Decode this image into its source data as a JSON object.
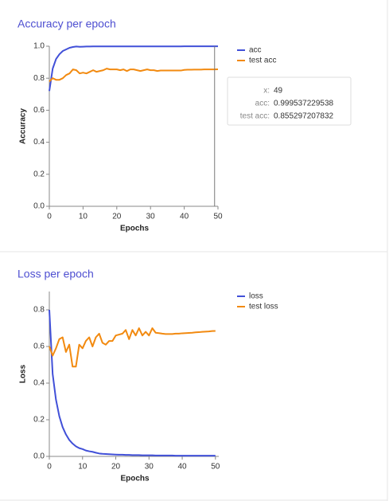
{
  "chart_data": [
    {
      "type": "line",
      "title": "Accuracy per epoch",
      "x_label": "Epochs",
      "y_label": "Accuracy",
      "x": [
        0,
        1,
        2,
        3,
        4,
        5,
        6,
        7,
        8,
        9,
        10,
        11,
        12,
        13,
        14,
        15,
        16,
        17,
        18,
        19,
        20,
        21,
        22,
        23,
        24,
        25,
        26,
        27,
        28,
        29,
        30,
        31,
        32,
        33,
        34,
        35,
        36,
        37,
        38,
        39,
        40,
        41,
        42,
        43,
        44,
        45,
        46,
        47,
        48,
        49,
        50
      ],
      "series": [
        {
          "name": "acc",
          "color": "#4150d8",
          "values": [
            0.72,
            0.86,
            0.92,
            0.95,
            0.97,
            0.98,
            0.99,
            0.995,
            0.998,
            0.996,
            0.997,
            0.998,
            0.998,
            0.999,
            0.999,
            0.999,
            0.999,
            0.999,
            0.999,
            0.999,
            0.999,
            0.999,
            0.999,
            0.999,
            0.999,
            0.999,
            0.999,
            0.999,
            0.999,
            0.999,
            0.999,
            0.999,
            0.999,
            0.999,
            0.999,
            0.999,
            0.999,
            0.999,
            0.999,
            0.999,
            0.9995,
            0.9995,
            0.9995,
            0.9995,
            0.9995,
            0.9995,
            0.9995,
            0.9995,
            0.9995,
            0.999537229538,
            0.9995
          ]
        },
        {
          "name": "test acc",
          "color": "#f28a10",
          "values": [
            0.78,
            0.8,
            0.79,
            0.79,
            0.8,
            0.82,
            0.83,
            0.855,
            0.85,
            0.83,
            0.835,
            0.83,
            0.84,
            0.85,
            0.84,
            0.845,
            0.85,
            0.86,
            0.855,
            0.855,
            0.855,
            0.85,
            0.855,
            0.845,
            0.855,
            0.855,
            0.85,
            0.845,
            0.85,
            0.855,
            0.85,
            0.85,
            0.845,
            0.848,
            0.848,
            0.848,
            0.848,
            0.848,
            0.848,
            0.848,
            0.852,
            0.853,
            0.853,
            0.854,
            0.854,
            0.854,
            0.855,
            0.855,
            0.855,
            0.855297207832,
            0.856
          ]
        }
      ],
      "xlim": [
        0,
        50
      ],
      "xticks": [
        0,
        10,
        20,
        30,
        40,
        50
      ],
      "ylim": [
        0,
        1
      ],
      "yticks": [
        {
          "value": 0,
          "label": "0.0"
        },
        0.2,
        0.4,
        0.6,
        0.8,
        {
          "value": 1,
          "label": "1.0"
        }
      ],
      "tooltip": {
        "x": 49,
        "x_label": "x:",
        "series_labels": [
          "acc:",
          "test acc:"
        ]
      }
    },
    {
      "type": "line",
      "title": "Loss per epoch",
      "x_label": "Epochs",
      "y_label": "Loss",
      "x": [
        0,
        1,
        2,
        3,
        4,
        5,
        6,
        7,
        8,
        9,
        10,
        11,
        12,
        13,
        14,
        15,
        16,
        17,
        18,
        19,
        20,
        21,
        22,
        23,
        24,
        25,
        26,
        27,
        28,
        29,
        30,
        31,
        32,
        33,
        34,
        35,
        36,
        37,
        38,
        39,
        40,
        41,
        42,
        43,
        44,
        45,
        46,
        47,
        48,
        49,
        50
      ],
      "series": [
        {
          "name": "loss",
          "color": "#4150d8",
          "values": [
            0.8,
            0.45,
            0.31,
            0.22,
            0.16,
            0.12,
            0.09,
            0.07,
            0.055,
            0.045,
            0.04,
            0.032,
            0.028,
            0.025,
            0.02,
            0.016,
            0.014,
            0.013,
            0.012,
            0.011,
            0.01,
            0.009,
            0.009,
            0.008,
            0.008,
            0.007,
            0.007,
            0.007,
            0.006,
            0.006,
            0.006,
            0.006,
            0.005,
            0.005,
            0.005,
            0.005,
            0.005,
            0.005,
            0.004,
            0.004,
            0.004,
            0.004,
            0.004,
            0.004,
            0.004,
            0.004,
            0.004,
            0.004,
            0.004,
            0.004,
            0.004
          ]
        },
        {
          "name": "test loss",
          "color": "#f28a10",
          "values": [
            0.6,
            0.55,
            0.59,
            0.64,
            0.65,
            0.57,
            0.61,
            0.49,
            0.49,
            0.61,
            0.59,
            0.63,
            0.65,
            0.6,
            0.65,
            0.67,
            0.62,
            0.61,
            0.63,
            0.63,
            0.66,
            0.665,
            0.67,
            0.69,
            0.64,
            0.69,
            0.66,
            0.7,
            0.66,
            0.68,
            0.66,
            0.7,
            0.675,
            0.673,
            0.67,
            0.668,
            0.668,
            0.668,
            0.67,
            0.67,
            0.672,
            0.673,
            0.674,
            0.675,
            0.677,
            0.678,
            0.68,
            0.681,
            0.682,
            0.684,
            0.685
          ]
        }
      ],
      "xlim": [
        0,
        51
      ],
      "xticks": [
        0,
        10,
        20,
        30,
        40,
        50
      ],
      "ylim": [
        0,
        0.9
      ],
      "yticks": [
        {
          "value": 0,
          "label": "0.0"
        },
        0.2,
        0.4,
        0.6,
        0.8
      ]
    }
  ]
}
